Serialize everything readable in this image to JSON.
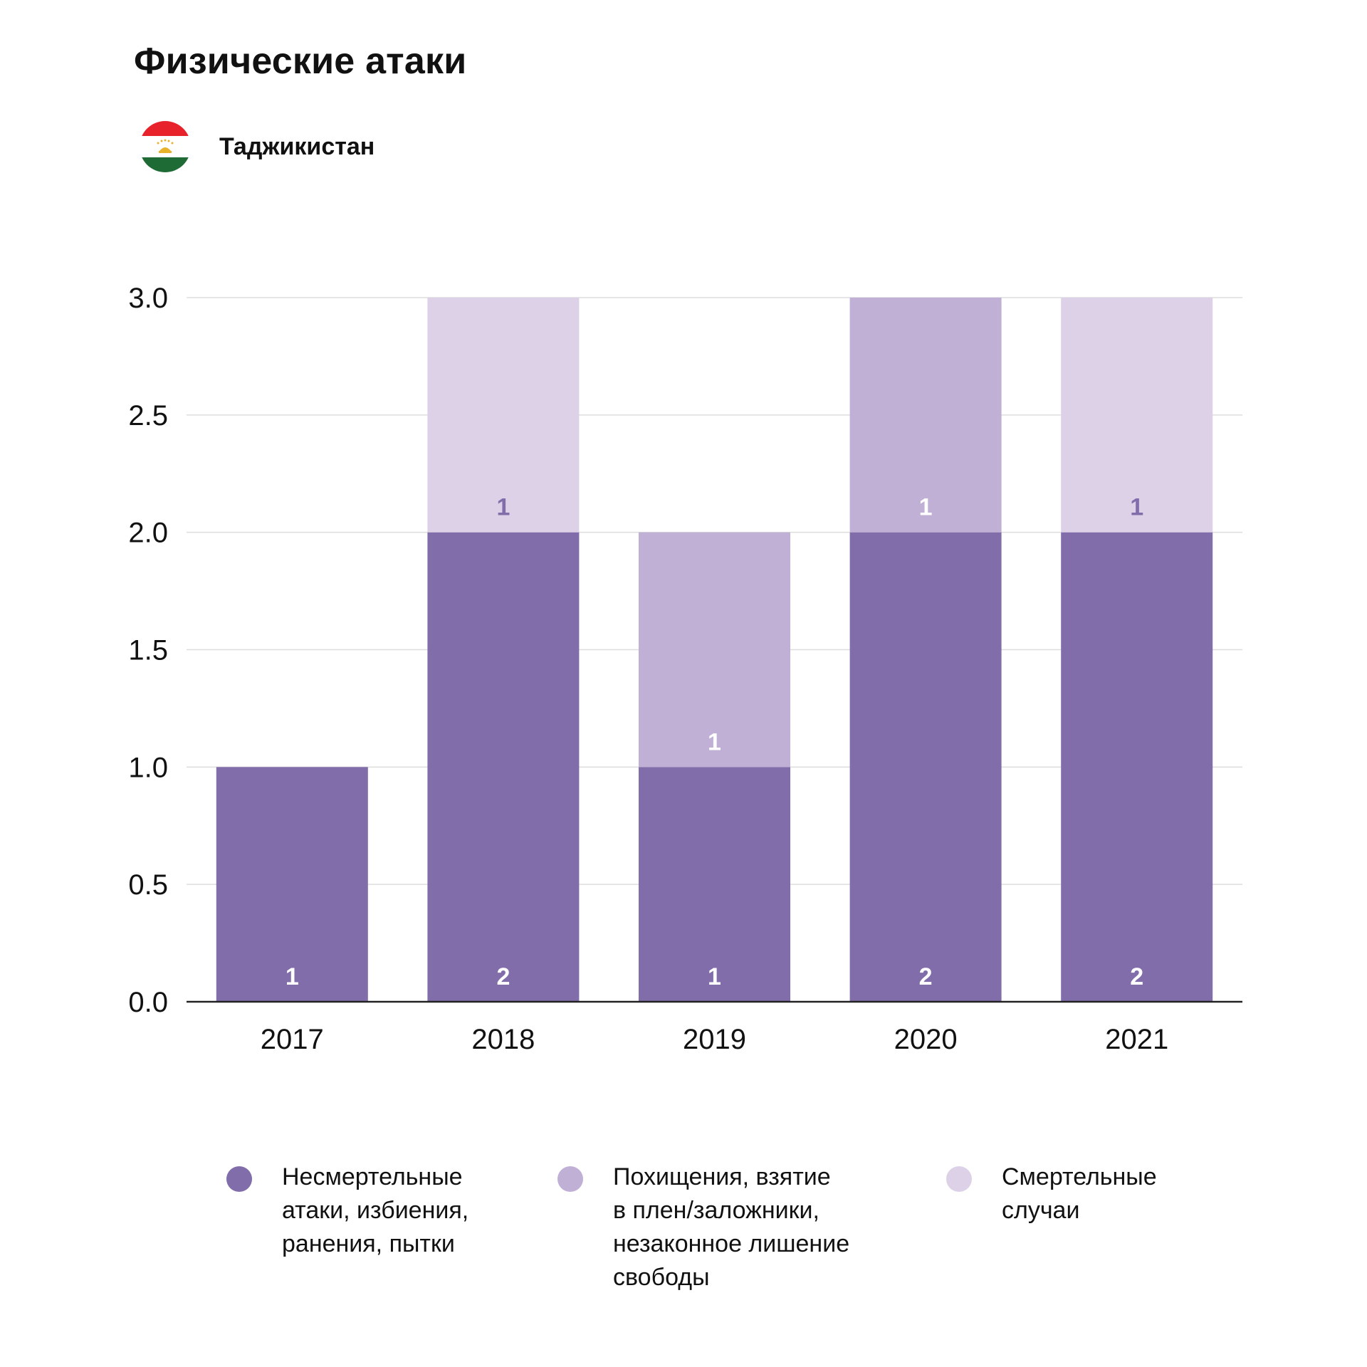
{
  "title": "Физические атаки",
  "country": {
    "name": "Таджикистан",
    "flag_icon": "tajikistan-flag-icon"
  },
  "chart_data": {
    "type": "bar",
    "stacked": true,
    "categories": [
      "2017",
      "2018",
      "2019",
      "2020",
      "2021"
    ],
    "ylim": [
      0,
      3
    ],
    "yticks": [
      "0.0",
      "0.5",
      "1.0",
      "1.5",
      "2.0",
      "2.5",
      "3.0"
    ],
    "grid": true,
    "legend_position": "bottom",
    "series": [
      {
        "name": "Несмертельные атаки, избиения, ранения, пытки",
        "color": "#826dab",
        "label_color": "#ffffff",
        "values": [
          1,
          2,
          1,
          2,
          2
        ]
      },
      {
        "name": "Похищения, взятие в плен/заложники, незаконное лишение свободы",
        "color": "#c0b0d6",
        "label_color": "#ffffff",
        "values": [
          0,
          0,
          1,
          1,
          0
        ]
      },
      {
        "name": "Смертельные случаи",
        "color": "#ddd1e8",
        "label_color": "#826dab",
        "values": [
          0,
          1,
          0,
          0,
          1
        ]
      }
    ]
  },
  "legend": [
    {
      "text": "Несмертельные\nатаки, избиения,\nранения, пытки",
      "color": "#826dab"
    },
    {
      "text": "Похищения, взятие\nв плен/заложники,\nнезаконное лишение\nсвободы",
      "color": "#c0b0d6"
    },
    {
      "text": "Смертельные\nслучаи",
      "color": "#ddd1e8"
    }
  ]
}
